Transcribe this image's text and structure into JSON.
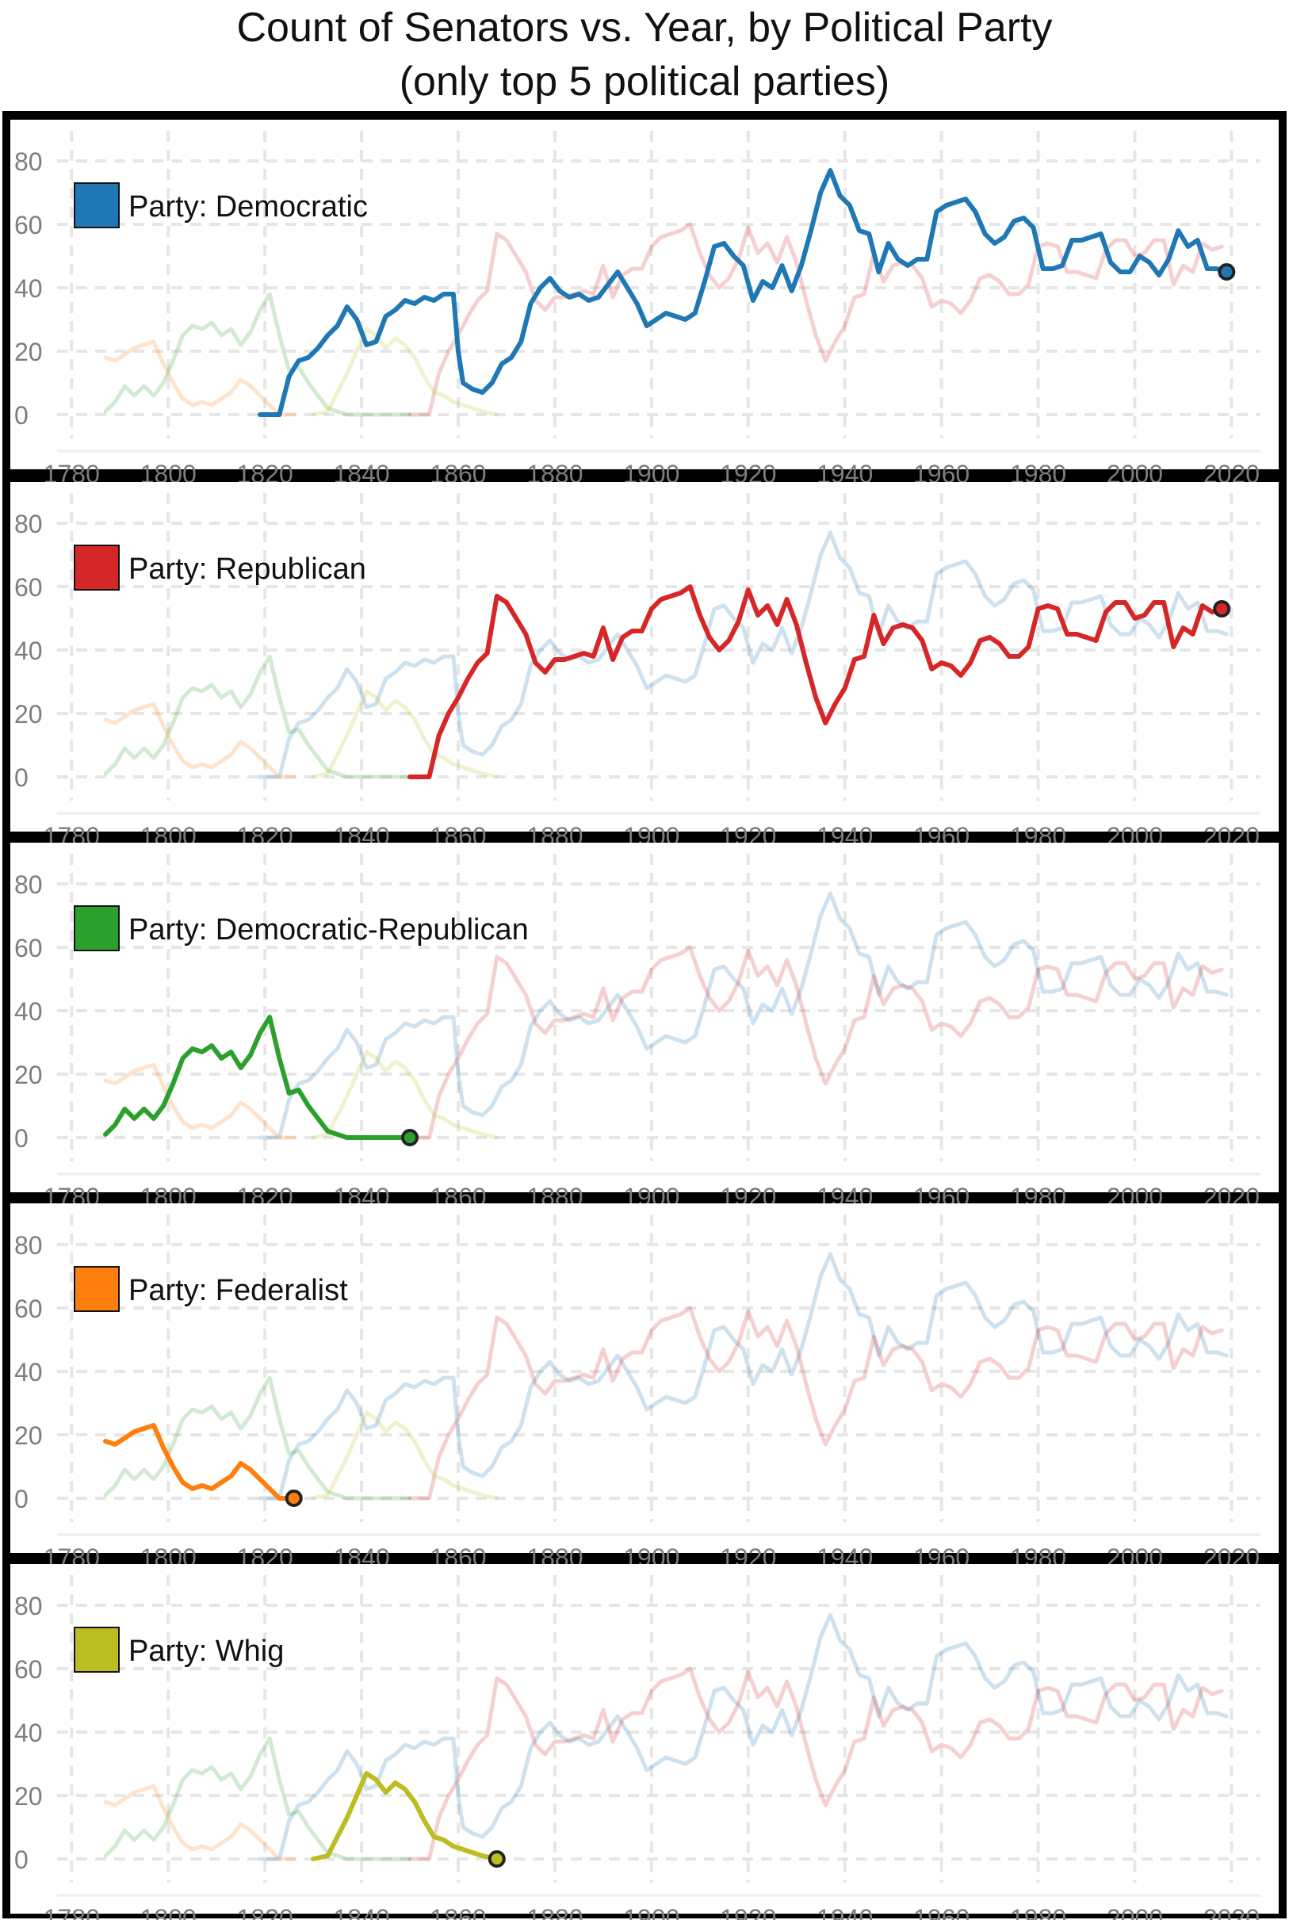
{
  "title_lines": [
    "Count of Senators vs. Year, by Political Party",
    "(only top 5 political parties)"
  ],
  "legend_prefix": "Party: ",
  "chart_data": {
    "type": "line",
    "title": "Count of Senators vs. Year, by Political Party (only top 5 political parties)",
    "xlabel": "",
    "ylabel": "",
    "x_ticks": [
      1780,
      1800,
      1820,
      1840,
      1860,
      1880,
      1900,
      1920,
      1940,
      1960,
      1980,
      2000,
      2020
    ],
    "y_ticks": [
      0,
      20,
      40,
      60,
      80
    ],
    "xlim": [
      1777,
      2026
    ],
    "ylim": [
      -5,
      82
    ],
    "grid": true,
    "layout": "small-multiples: one panel per party, highlighted series with others faded",
    "series": [
      {
        "name": "Democratic",
        "color": "#1f77b4",
        "points": [
          [
            1819,
            0
          ],
          [
            1823,
            0
          ],
          [
            1825,
            12
          ],
          [
            1827,
            17
          ],
          [
            1829,
            18
          ],
          [
            1831,
            21
          ],
          [
            1833,
            25
          ],
          [
            1835,
            28
          ],
          [
            1837,
            34
          ],
          [
            1839,
            30
          ],
          [
            1841,
            22
          ],
          [
            1843,
            23
          ],
          [
            1845,
            31
          ],
          [
            1847,
            33
          ],
          [
            1849,
            36
          ],
          [
            1851,
            35
          ],
          [
            1853,
            37
          ],
          [
            1855,
            36
          ],
          [
            1857,
            38
          ],
          [
            1859,
            38
          ],
          [
            1860,
            20
          ],
          [
            1861,
            10
          ],
          [
            1863,
            8
          ],
          [
            1865,
            7
          ],
          [
            1867,
            10
          ],
          [
            1869,
            16
          ],
          [
            1871,
            18
          ],
          [
            1873,
            23
          ],
          [
            1875,
            35
          ],
          [
            1877,
            40
          ],
          [
            1879,
            43
          ],
          [
            1881,
            39
          ],
          [
            1883,
            37
          ],
          [
            1885,
            38
          ],
          [
            1887,
            36
          ],
          [
            1889,
            37
          ],
          [
            1891,
            41
          ],
          [
            1893,
            45
          ],
          [
            1895,
            40
          ],
          [
            1897,
            35
          ],
          [
            1899,
            28
          ],
          [
            1901,
            30
          ],
          [
            1903,
            32
          ],
          [
            1905,
            31
          ],
          [
            1907,
            30
          ],
          [
            1909,
            32
          ],
          [
            1911,
            42
          ],
          [
            1913,
            53
          ],
          [
            1915,
            54
          ],
          [
            1917,
            50
          ],
          [
            1919,
            47
          ],
          [
            1921,
            36
          ],
          [
            1923,
            42
          ],
          [
            1925,
            40
          ],
          [
            1927,
            47
          ],
          [
            1929,
            39
          ],
          [
            1931,
            47
          ],
          [
            1933,
            58
          ],
          [
            1935,
            70
          ],
          [
            1937,
            77
          ],
          [
            1939,
            69
          ],
          [
            1941,
            66
          ],
          [
            1943,
            58
          ],
          [
            1945,
            57
          ],
          [
            1947,
            45
          ],
          [
            1949,
            54
          ],
          [
            1951,
            49
          ],
          [
            1953,
            47
          ],
          [
            1955,
            49
          ],
          [
            1957,
            49
          ],
          [
            1959,
            64
          ],
          [
            1961,
            66
          ],
          [
            1963,
            67
          ],
          [
            1965,
            68
          ],
          [
            1967,
            64
          ],
          [
            1969,
            57
          ],
          [
            1971,
            54
          ],
          [
            1973,
            56
          ],
          [
            1975,
            61
          ],
          [
            1977,
            62
          ],
          [
            1979,
            59
          ],
          [
            1981,
            46
          ],
          [
            1983,
            46
          ],
          [
            1985,
            47
          ],
          [
            1987,
            55
          ],
          [
            1989,
            55
          ],
          [
            1991,
            56
          ],
          [
            1993,
            57
          ],
          [
            1995,
            48
          ],
          [
            1997,
            45
          ],
          [
            1999,
            45
          ],
          [
            2001,
            50
          ],
          [
            2003,
            48
          ],
          [
            2005,
            44
          ],
          [
            2007,
            49
          ],
          [
            2009,
            58
          ],
          [
            2011,
            53
          ],
          [
            2013,
            55
          ],
          [
            2015,
            46
          ],
          [
            2017,
            46
          ],
          [
            2019,
            45
          ]
        ]
      },
      {
        "name": "Republican",
        "color": "#d62728",
        "points": [
          [
            1850,
            0
          ],
          [
            1854,
            0
          ],
          [
            1856,
            13
          ],
          [
            1858,
            20
          ],
          [
            1860,
            25
          ],
          [
            1862,
            31
          ],
          [
            1864,
            36
          ],
          [
            1866,
            39
          ],
          [
            1868,
            57
          ],
          [
            1870,
            55
          ],
          [
            1872,
            50
          ],
          [
            1874,
            45
          ],
          [
            1876,
            36
          ],
          [
            1878,
            33
          ],
          [
            1880,
            37
          ],
          [
            1882,
            37
          ],
          [
            1884,
            38
          ],
          [
            1886,
            39
          ],
          [
            1888,
            38
          ],
          [
            1890,
            47
          ],
          [
            1892,
            37
          ],
          [
            1894,
            44
          ],
          [
            1896,
            46
          ],
          [
            1898,
            46
          ],
          [
            1900,
            53
          ],
          [
            1902,
            56
          ],
          [
            1904,
            57
          ],
          [
            1906,
            58
          ],
          [
            1908,
            60
          ],
          [
            1910,
            51
          ],
          [
            1912,
            44
          ],
          [
            1914,
            40
          ],
          [
            1916,
            43
          ],
          [
            1918,
            49
          ],
          [
            1920,
            59
          ],
          [
            1922,
            51
          ],
          [
            1924,
            54
          ],
          [
            1926,
            48
          ],
          [
            1928,
            56
          ],
          [
            1930,
            48
          ],
          [
            1932,
            36
          ],
          [
            1934,
            25
          ],
          [
            1936,
            17
          ],
          [
            1938,
            23
          ],
          [
            1940,
            28
          ],
          [
            1942,
            37
          ],
          [
            1944,
            38
          ],
          [
            1946,
            51
          ],
          [
            1948,
            42
          ],
          [
            1950,
            47
          ],
          [
            1952,
            48
          ],
          [
            1954,
            47
          ],
          [
            1956,
            43
          ],
          [
            1958,
            34
          ],
          [
            1960,
            36
          ],
          [
            1962,
            35
          ],
          [
            1964,
            32
          ],
          [
            1966,
            36
          ],
          [
            1968,
            43
          ],
          [
            1970,
            44
          ],
          [
            1972,
            42
          ],
          [
            1974,
            38
          ],
          [
            1976,
            38
          ],
          [
            1978,
            41
          ],
          [
            1980,
            53
          ],
          [
            1982,
            54
          ],
          [
            1984,
            53
          ],
          [
            1986,
            45
          ],
          [
            1988,
            45
          ],
          [
            1990,
            44
          ],
          [
            1992,
            43
          ],
          [
            1994,
            52
          ],
          [
            1996,
            55
          ],
          [
            1998,
            55
          ],
          [
            2000,
            50
          ],
          [
            2002,
            51
          ],
          [
            2004,
            55
          ],
          [
            2006,
            55
          ],
          [
            2008,
            41
          ],
          [
            2010,
            47
          ],
          [
            2012,
            45
          ],
          [
            2014,
            54
          ],
          [
            2016,
            52
          ],
          [
            2018,
            53
          ]
        ]
      },
      {
        "name": "Democratic-Republican",
        "color": "#2ca02c",
        "points": [
          [
            1787,
            1
          ],
          [
            1789,
            4
          ],
          [
            1791,
            9
          ],
          [
            1793,
            6
          ],
          [
            1795,
            9
          ],
          [
            1797,
            6
          ],
          [
            1799,
            10
          ],
          [
            1801,
            17
          ],
          [
            1803,
            25
          ],
          [
            1805,
            28
          ],
          [
            1807,
            27
          ],
          [
            1809,
            29
          ],
          [
            1811,
            25
          ],
          [
            1813,
            27
          ],
          [
            1815,
            22
          ],
          [
            1817,
            26
          ],
          [
            1819,
            33
          ],
          [
            1821,
            38
          ],
          [
            1823,
            25
          ],
          [
            1825,
            14
          ],
          [
            1827,
            15
          ],
          [
            1829,
            10
          ],
          [
            1831,
            6
          ],
          [
            1833,
            2
          ],
          [
            1835,
            1
          ],
          [
            1837,
            0
          ],
          [
            1840,
            0
          ],
          [
            1850,
            0
          ]
        ]
      },
      {
        "name": "Federalist",
        "color": "#ff7f0e",
        "points": [
          [
            1787,
            18
          ],
          [
            1789,
            17
          ],
          [
            1791,
            19
          ],
          [
            1793,
            21
          ],
          [
            1795,
            22
          ],
          [
            1797,
            23
          ],
          [
            1799,
            16
          ],
          [
            1801,
            10
          ],
          [
            1803,
            5
          ],
          [
            1805,
            3
          ],
          [
            1807,
            4
          ],
          [
            1809,
            3
          ],
          [
            1811,
            5
          ],
          [
            1813,
            7
          ],
          [
            1815,
            11
          ],
          [
            1817,
            9
          ],
          [
            1819,
            6
          ],
          [
            1821,
            3
          ],
          [
            1823,
            0
          ],
          [
            1826,
            0
          ]
        ]
      },
      {
        "name": "Whig",
        "color": "#bcbd22",
        "points": [
          [
            1830,
            0
          ],
          [
            1833,
            1
          ],
          [
            1835,
            7
          ],
          [
            1837,
            13
          ],
          [
            1839,
            20
          ],
          [
            1841,
            27
          ],
          [
            1843,
            25
          ],
          [
            1845,
            21
          ],
          [
            1847,
            24
          ],
          [
            1849,
            22
          ],
          [
            1851,
            18
          ],
          [
            1853,
            12
          ],
          [
            1855,
            7
          ],
          [
            1857,
            6
          ],
          [
            1859,
            4
          ],
          [
            1861,
            3
          ],
          [
            1863,
            2
          ],
          [
            1865,
            1
          ],
          [
            1868,
            0
          ]
        ]
      }
    ]
  }
}
